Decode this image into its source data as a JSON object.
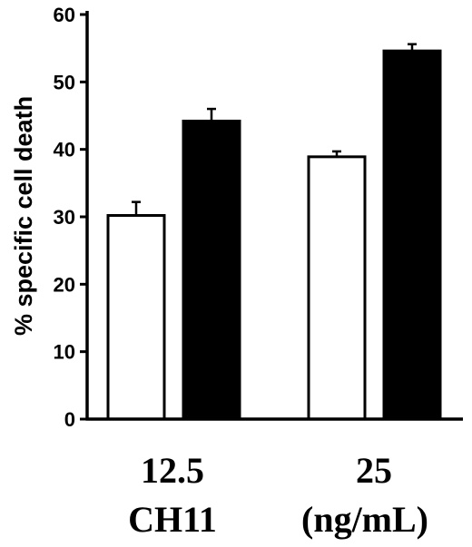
{
  "chart_data": {
    "type": "bar",
    "categories": [
      "12.5",
      "25"
    ],
    "category_caption": [
      "CH11",
      "(ng/mL)"
    ],
    "ylabel": "% specific cell death",
    "xlabel": "",
    "ylim": [
      0,
      60
    ],
    "yticks": [
      0,
      10,
      20,
      30,
      40,
      50,
      60
    ],
    "grid": false,
    "legend": "none",
    "series": [
      {
        "color": "#ffffff",
        "values": [
          30.2,
          38.9
        ],
        "errors": [
          2.0,
          0.8
        ]
      },
      {
        "color": "#000000",
        "values": [
          44.2,
          54.6
        ],
        "errors": [
          1.8,
          1.0
        ]
      }
    ]
  }
}
